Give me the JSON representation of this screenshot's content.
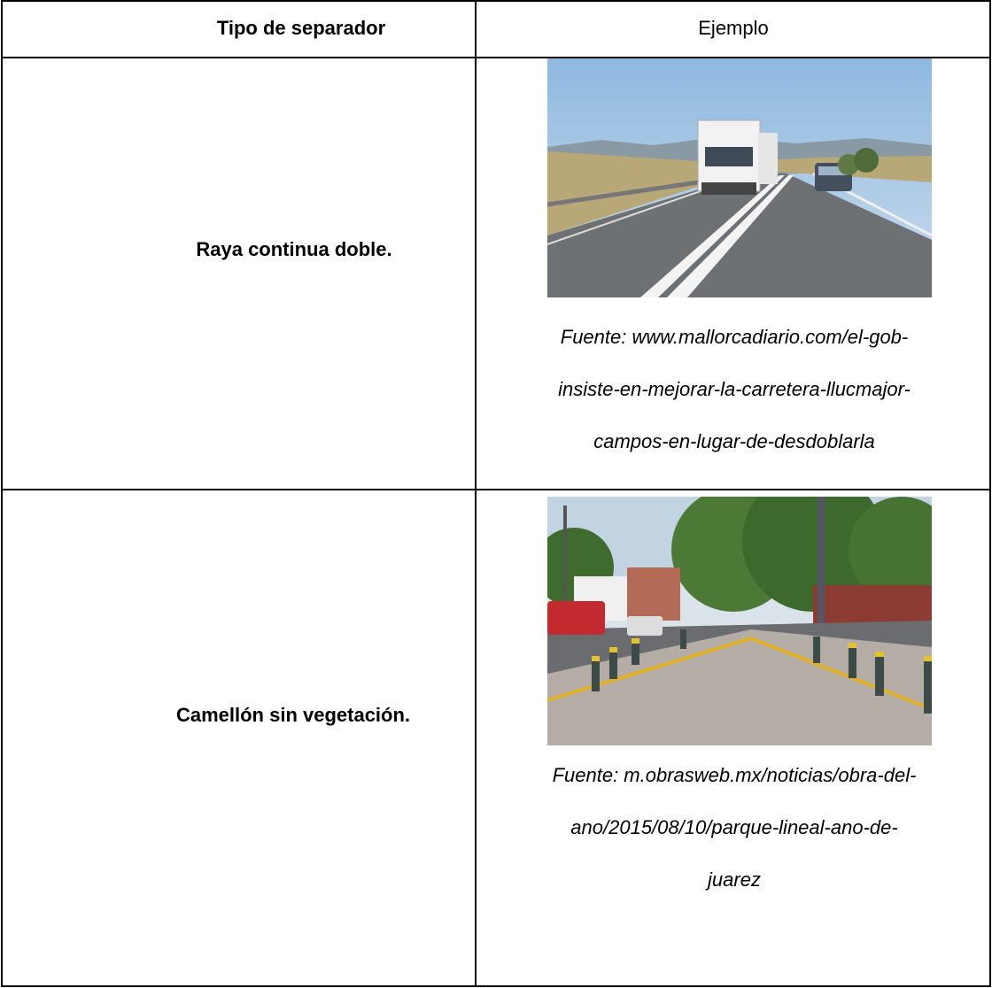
{
  "table": {
    "header": [
      "Tipo de separador",
      "Ejemplo"
    ],
    "rows": [
      {
        "label": "Raya continua doble.",
        "caption": [
          "Fuente: www.mallorcadiario.com/el-gob-",
          "insiste-en-mejorar-la-carretera-llucmajor-",
          "campos-en-lugar-de-desdoblarla"
        ]
      },
      {
        "label": "Camellón sin vegetación.",
        "caption": [
          "Fuente: m.obrasweb.mx/noticias/obra-del-",
          "ano/2015/08/10/parque-lineal-ano-de-",
          "juarez"
        ]
      }
    ]
  }
}
